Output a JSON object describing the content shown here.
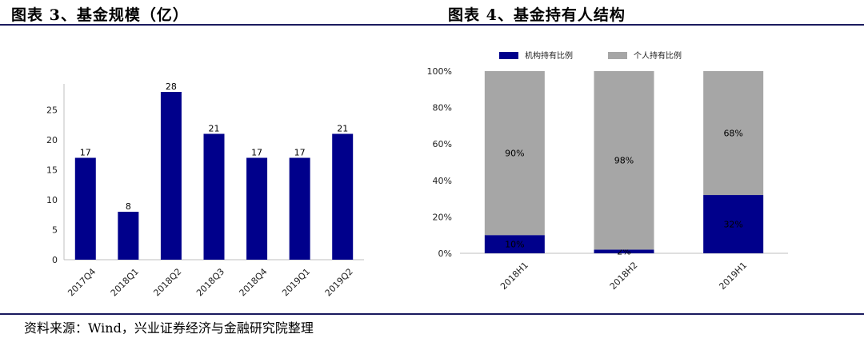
{
  "titles": {
    "left": "图表 3、基金规模（亿）",
    "right": "图表 4、基金持有人结构"
  },
  "source": "资料来源：Wind，兴业证券经济与金融研究院整理",
  "chart_data": [
    {
      "type": "bar",
      "categories": [
        "2017Q4",
        "2018Q1",
        "2018Q2",
        "2018Q3",
        "2018Q4",
        "2019Q1",
        "2019Q2"
      ],
      "values": [
        17,
        8,
        28,
        21,
        17,
        17,
        21
      ],
      "data_labels": [
        "17",
        "8",
        "28",
        "21",
        "17",
        "17",
        "21"
      ],
      "ylim": [
        0,
        28
      ],
      "yticks": [
        "0",
        "5",
        "10",
        "15",
        "20",
        "25"
      ],
      "grid": false,
      "color": "#00008b"
    },
    {
      "type": "bar",
      "stacked": true,
      "percent": true,
      "categories": [
        "2018H1",
        "2018H2",
        "2019H1"
      ],
      "series": [
        {
          "name": "机构持有比例",
          "values": [
            10,
            2,
            32
          ],
          "labels": [
            "10%",
            "2%",
            "32%"
          ],
          "color": "#00008b"
        },
        {
          "name": "个人持有比例",
          "values": [
            90,
            98,
            68
          ],
          "labels": [
            "90%",
            "98%",
            "68%"
          ],
          "color": "#a6a6a6"
        }
      ],
      "ylim": [
        0,
        100
      ],
      "yticks": [
        "0%",
        "20%",
        "40%",
        "60%",
        "80%",
        "100%"
      ],
      "legend": "top",
      "grid": false
    }
  ]
}
